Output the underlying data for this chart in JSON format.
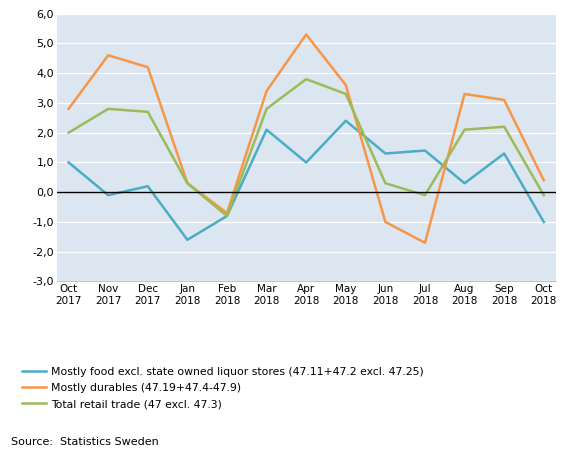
{
  "x_labels": [
    "Oct\n2017",
    "Nov\n2017",
    "Dec\n2017",
    "Jan\n2018",
    "Feb\n2018",
    "Mar\n2018",
    "Apr\n2018",
    "May\n2018",
    "Jun\n2018",
    "Jul\n2018",
    "Aug\n2018",
    "Sep\n2018",
    "Oct\n2018"
  ],
  "food": [
    1.0,
    -0.1,
    0.2,
    -1.6,
    -0.8,
    2.1,
    1.0,
    2.4,
    1.3,
    1.4,
    0.3,
    1.3,
    -1.0
  ],
  "durables": [
    2.8,
    4.6,
    4.2,
    0.3,
    -0.7,
    3.4,
    5.3,
    3.6,
    -1.0,
    -1.7,
    3.3,
    3.1,
    0.4
  ],
  "total": [
    2.0,
    2.8,
    2.7,
    0.3,
    -0.8,
    2.8,
    3.8,
    3.3,
    0.3,
    -0.1,
    2.1,
    2.2,
    -0.1
  ],
  "food_color": "#4bacc6",
  "durables_color": "#f79646",
  "total_color": "#9bbb59",
  "food_label": "Mostly food excl. state owned liquor stores (47.11+47.2 excl. 47.25)",
  "durables_label": "Mostly durables (47.19+47.4-47.9)",
  "total_label": "Total retail trade (47 excl. 47.3)",
  "ylim": [
    -3.0,
    6.0
  ],
  "yticks": [
    -3.0,
    -2.0,
    -1.0,
    0.0,
    1.0,
    2.0,
    3.0,
    4.0,
    5.0,
    6.0
  ],
  "source_text": "Source:  Statistics Sweden",
  "plot_background": "#dce6f1",
  "fig_background": "#ffffff"
}
